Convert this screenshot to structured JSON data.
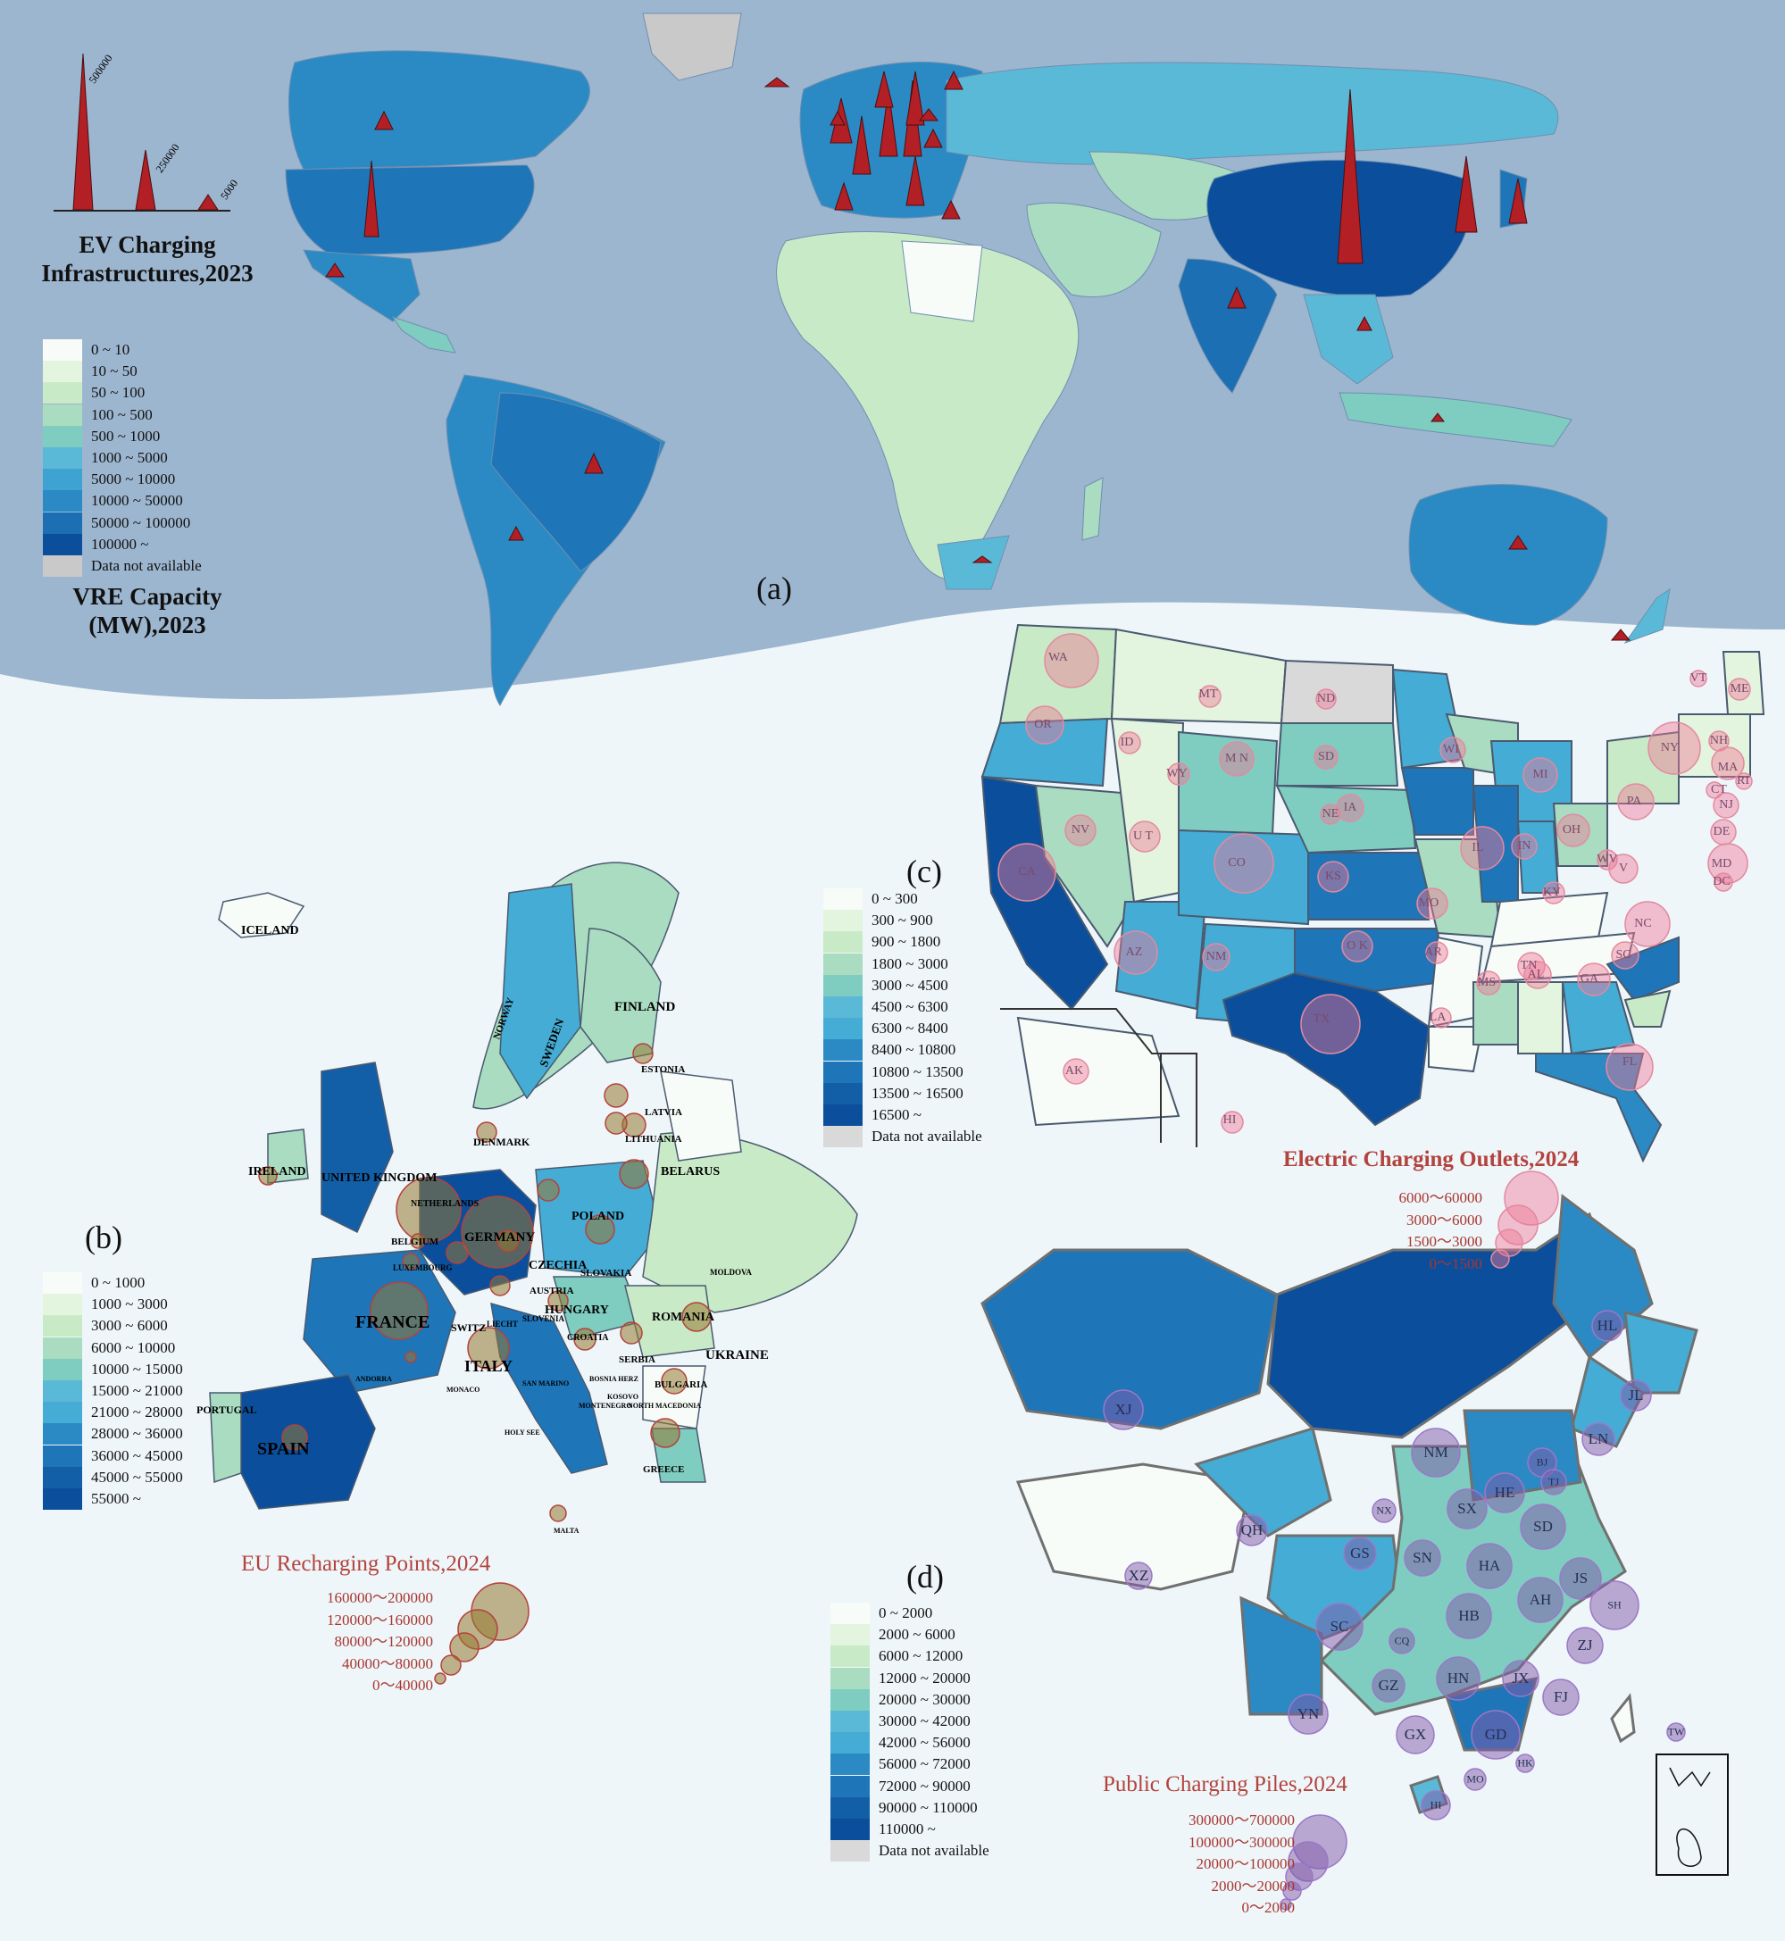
{
  "panel_a": {
    "label": "(a)",
    "ev_legend_title": "EV Charging Infrastructures,2023",
    "spike_labels": [
      "500000",
      "250000",
      "5000"
    ],
    "vre_title": "VRE Capacity (MW),2023",
    "vre_legend": [
      {
        "label": "0 ~ 10",
        "color": "#f7fcf8"
      },
      {
        "label": "10 ~ 50",
        "color": "#e3f4df"
      },
      {
        "label": "50 ~ 100",
        "color": "#c9eac7"
      },
      {
        "label": "100 ~ 500",
        "color": "#a9dcc0"
      },
      {
        "label": "500 ~ 1000",
        "color": "#7ecdc0"
      },
      {
        "label": "1000 ~ 5000",
        "color": "#5ab9d6"
      },
      {
        "label": "5000 ~ 10000",
        "color": "#3fa3d1"
      },
      {
        "label": "10000 ~ 50000",
        "color": "#2b8ac4"
      },
      {
        "label": "50000 ~ 100000",
        "color": "#1b6fb2"
      },
      {
        "label": "100000 ~",
        "color": "#0b4f9c"
      },
      {
        "label": "Data not available",
        "color": "#c9c9c9"
      }
    ]
  },
  "panel_b": {
    "label": "(b)",
    "title": "EU Recharging Points,2024",
    "bubble_legend": [
      "160000～200000",
      "120000～160000",
      "80000～120000",
      "40000～80000",
      "0～40000"
    ],
    "legend": [
      {
        "label": "0 ~ 1000",
        "color": "#f7fcf8"
      },
      {
        "label": "1000 ~ 3000",
        "color": "#e3f4df"
      },
      {
        "label": "3000 ~ 6000",
        "color": "#c9eac7"
      },
      {
        "label": "6000 ~ 10000",
        "color": "#a9dcc0"
      },
      {
        "label": "10000 ~ 15000",
        "color": "#7ecdc0"
      },
      {
        "label": "15000 ~ 21000",
        "color": "#5ab9d6"
      },
      {
        "label": "21000 ~ 28000",
        "color": "#45acd5"
      },
      {
        "label": "28000 ~ 36000",
        "color": "#2b8ac4"
      },
      {
        "label": "36000 ~ 45000",
        "color": "#1e75b8"
      },
      {
        "label": "45000 ~ 55000",
        "color": "#125fa8"
      },
      {
        "label": "55000 ~",
        "color": "#0b4f9c"
      }
    ],
    "countries": [
      "ICELAND",
      "NORWAY",
      "SWEDEN",
      "FINLAND",
      "ESTONIA",
      "LATVIA",
      "LITHUANIA",
      "DENMARK",
      "IRELAND",
      "UNITED KINGDOM",
      "NETHERLANDS",
      "BELGIUM",
      "LUXEMBOURG",
      "GERMANY",
      "POLAND",
      "BELARUS",
      "CZECHIA",
      "SLOVAKIA",
      "AUSTRIA",
      "HUNGARY",
      "SLOVENIA",
      "CROATIA",
      "ROMANIA",
      "UKRAINE",
      "MOLDOVA",
      "FRANCE",
      "SWITZ",
      "LIECHT",
      "ITALY",
      "SPAIN",
      "PORTUGAL",
      "ANDORRA",
      "MONACO",
      "SAN MARINO",
      "HOLY SEE",
      "SERBIA",
      "BULGARIA",
      "GREECE",
      "MALTA",
      "MONTENEGRO",
      "KOSOVO",
      "BOSNIA HERZ",
      "NORTH MACEDONIA"
    ]
  },
  "panel_c": {
    "label": "(c)",
    "title": "Electric Charging Outlets,2024",
    "bubble_legend": [
      "6000～60000",
      "3000～6000",
      "1500～3000",
      "0～1500"
    ],
    "legend": [
      {
        "label": "0 ~ 300",
        "color": "#f7fcf8"
      },
      {
        "label": "300 ~ 900",
        "color": "#e3f4df"
      },
      {
        "label": "900 ~ 1800",
        "color": "#c9eac7"
      },
      {
        "label": "1800 ~ 3000",
        "color": "#a9dcc0"
      },
      {
        "label": "3000 ~ 4500",
        "color": "#7ecdc0"
      },
      {
        "label": "4500 ~ 6300",
        "color": "#5ab9d6"
      },
      {
        "label": "6300 ~ 8400",
        "color": "#45acd5"
      },
      {
        "label": "8400 ~ 10800",
        "color": "#2b8ac4"
      },
      {
        "label": "10800 ~ 13500",
        "color": "#1e75b8"
      },
      {
        "label": "13500 ~ 16500",
        "color": "#125fa8"
      },
      {
        "label": "16500 ~",
        "color": "#0b4f9c"
      },
      {
        "label": "Data not available",
        "color": "#d9d9d9"
      }
    ],
    "states": [
      "WA",
      "OR",
      "MT",
      "ID",
      "ND",
      "SD",
      "WY",
      "NE",
      "M N",
      "WI",
      "MI",
      "NY",
      "VT",
      "NH",
      "ME",
      "MA",
      "RI",
      "CT",
      "NJ",
      "PA",
      "DE",
      "MD",
      "DC",
      "CA",
      "NV",
      "U T",
      "CO",
      "KS",
      "IA",
      "IL",
      "IN",
      "OH",
      "WV",
      "V",
      "KY",
      "MO",
      "AZ",
      "NM",
      "O K",
      "AR",
      "TN",
      "NC",
      "SC",
      "GA",
      "AL",
      "MS",
      "LA",
      "TX",
      "FL",
      "AK",
      "HI"
    ]
  },
  "panel_d": {
    "label": "(d)",
    "title": "Public Charging Piles,2024",
    "bubble_legend": [
      "300000～700000",
      "100000～300000",
      "20000～100000",
      "2000～20000",
      "0～2000"
    ],
    "legend": [
      {
        "label": "0 ~ 2000",
        "color": "#f7fcf8"
      },
      {
        "label": "2000 ~ 6000",
        "color": "#e3f4df"
      },
      {
        "label": "6000 ~ 12000",
        "color": "#c9eac7"
      },
      {
        "label": "12000 ~ 20000",
        "color": "#a9dcc0"
      },
      {
        "label": "20000 ~ 30000",
        "color": "#7ecdc0"
      },
      {
        "label": "30000 ~ 42000",
        "color": "#5ab9d6"
      },
      {
        "label": "42000 ~ 56000",
        "color": "#45acd5"
      },
      {
        "label": "56000 ~ 72000",
        "color": "#2b8ac4"
      },
      {
        "label": "72000 ~ 90000",
        "color": "#1e75b8"
      },
      {
        "label": "90000 ~ 110000",
        "color": "#125fa8"
      },
      {
        "label": "110000 ~",
        "color": "#0b4f9c"
      },
      {
        "label": "Data not available",
        "color": "#d9d9d9"
      }
    ],
    "provinces": [
      "HL",
      "JL",
      "LN",
      "XJ",
      "NM",
      "BJ",
      "TJ",
      "HE",
      "SX",
      "SD",
      "NX",
      "QH",
      "GS",
      "SN",
      "HA",
      "JS",
      "SH",
      "XZ",
      "SC",
      "CQ",
      "HB",
      "AH",
      "ZJ",
      "GZ",
      "HN",
      "JX",
      "FJ",
      "YN",
      "GX",
      "GD",
      "TW",
      "HK",
      "MO",
      "HI"
    ]
  }
}
